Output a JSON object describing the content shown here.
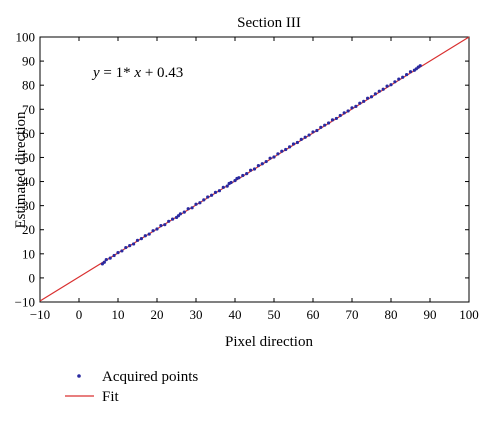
{
  "chart_data": {
    "type": "scatter",
    "title": "Section III",
    "xlabel": "Pixel direction",
    "ylabel": "Estimated direction",
    "xlim": [
      -10,
      100
    ],
    "ylim": [
      -10,
      100
    ],
    "xticks": [
      -10,
      0,
      10,
      20,
      30,
      40,
      50,
      60,
      70,
      80,
      90,
      100
    ],
    "yticks": [
      -10,
      0,
      10,
      20,
      30,
      40,
      50,
      60,
      70,
      80,
      90,
      100
    ],
    "x_tick_labels": [
      "−10",
      "0",
      "10",
      "20",
      "30",
      "40",
      "50",
      "60",
      "70",
      "80",
      "90",
      "100"
    ],
    "y_tick_labels": [
      "−10",
      "0",
      "10",
      "20",
      "30",
      "40",
      "50",
      "60",
      "70",
      "80",
      "90",
      "100"
    ],
    "grid": false,
    "legend_position": "below-left",
    "annotation": {
      "prefix": "y",
      "rest": " = 1* ",
      "var": "x",
      "tail": " + 0.43"
    },
    "series": [
      {
        "name": "Acquired points",
        "kind": "scatter",
        "color": "#2a2aa0",
        "x": [
          6,
          6.5,
          7,
          8,
          9,
          10,
          11,
          12,
          13,
          14,
          15,
          16,
          17,
          18,
          19,
          20,
          21,
          22,
          23,
          24,
          25,
          25.5,
          26,
          27,
          28,
          29,
          30,
          31,
          32,
          33,
          34,
          35,
          36,
          37,
          38,
          38.5,
          39,
          40,
          40.5,
          41,
          42,
          43,
          44,
          45,
          46,
          47,
          48,
          49,
          50,
          51,
          52,
          53,
          54,
          55,
          56,
          57,
          58,
          59,
          60,
          61,
          62,
          63,
          64,
          65,
          66,
          67,
          68,
          69,
          70,
          71,
          72,
          73,
          74,
          75,
          76,
          77,
          78,
          79,
          80,
          81,
          82,
          83,
          84,
          85,
          86,
          86.5,
          87,
          87.5
        ],
        "y": [
          5.8,
          6.5,
          7.6,
          8.2,
          9.3,
          10.5,
          11.2,
          12.6,
          13.4,
          14.1,
          15.6,
          16.3,
          17.5,
          18.2,
          19.6,
          20.3,
          21.7,
          22.1,
          23.5,
          24.4,
          25.1,
          25.8,
          26.6,
          27.3,
          28.7,
          29.1,
          30.6,
          31.2,
          32.4,
          33.6,
          34.3,
          35.5,
          36.2,
          37.6,
          38.1,
          39.2,
          39.6,
          40.4,
          41.3,
          41.6,
          42.5,
          43.3,
          44.7,
          45.2,
          46.6,
          47.4,
          48.3,
          49.7,
          50.2,
          51.5,
          52.6,
          53.3,
          54.4,
          55.6,
          56.2,
          57.5,
          58.4,
          59.3,
          60.6,
          61.2,
          62.5,
          63.4,
          64.3,
          65.6,
          66.2,
          67.4,
          68.5,
          69.3,
          70.6,
          71.2,
          72.5,
          73.3,
          74.6,
          75.2,
          76.4,
          77.5,
          78.3,
          79.6,
          80.2,
          81.4,
          82.5,
          83.3,
          84.4,
          85.6,
          86.2,
          86.8,
          87.5,
          88.1
        ]
      },
      {
        "name": "Fit",
        "kind": "line",
        "color": "#d93030",
        "x": [
          -10,
          100
        ],
        "y": [
          -9.57,
          100.43
        ]
      }
    ]
  }
}
